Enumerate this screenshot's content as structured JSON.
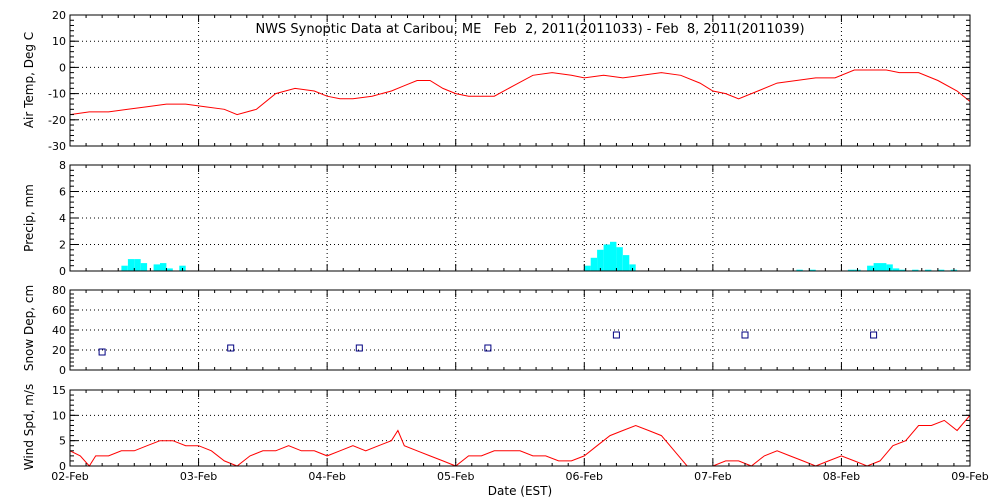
{
  "chart_data": {
    "type": "line",
    "title": "NWS Synoptic Data at Caribou, ME   Feb  2, 2011(2011033) - Feb  8, 2011(2011039)",
    "xlabel": "Date (EST)",
    "x_ticks": [
      "02-Feb",
      "03-Feb",
      "04-Feb",
      "05-Feb",
      "06-Feb",
      "07-Feb",
      "08-Feb",
      "09-Feb"
    ],
    "xlim": [
      0,
      7
    ],
    "grid": true,
    "colors": {
      "temp": "#ff0000",
      "precip": "#00ffff",
      "snow": "#000080",
      "wind": "#ff0000"
    },
    "panels": [
      {
        "id": "air-temp",
        "type": "line",
        "ylabel": "Air Temp, Deg C",
        "ylim": [
          -30,
          20
        ],
        "yticks": [
          "20",
          "10",
          "0",
          "-10",
          "-20",
          "-30"
        ],
        "series": [
          {
            "x": [
              0,
              0.15,
              0.3,
              0.45,
              0.6,
              0.75,
              0.9,
              1.05,
              1.2,
              1.3,
              1.45,
              1.6,
              1.75,
              1.9,
              2.0,
              2.1,
              2.2,
              2.35,
              2.5,
              2.6,
              2.7,
              2.8,
              2.9,
              3.0,
              3.1,
              3.2,
              3.3,
              3.45,
              3.6,
              3.75,
              3.9,
              4.0,
              4.15,
              4.3,
              4.45,
              4.6,
              4.75,
              4.9,
              5.0,
              5.1,
              5.2,
              5.35,
              5.5,
              5.65,
              5.8,
              5.95,
              6.1,
              6.25,
              6.35,
              6.45,
              6.6,
              6.75,
              6.9,
              7.0
            ],
            "y": [
              -18,
              -17,
              -17,
              -16,
              -15,
              -14,
              -14,
              -15,
              -16,
              -18,
              -16,
              -10,
              -8,
              -9,
              -11,
              -12,
              -12,
              -11,
              -9,
              -7,
              -5,
              -5,
              -8,
              -10,
              -11,
              -11,
              -11,
              -7,
              -3,
              -2,
              -3,
              -4,
              -3,
              -4,
              -3,
              -2,
              -3,
              -6,
              -9,
              -10,
              -12,
              -9,
              -6,
              -5,
              -4,
              -4,
              -1,
              -1,
              -1,
              -2,
              -2,
              -5,
              -9,
              -13
            ]
          }
        ]
      },
      {
        "id": "precip",
        "type": "bar",
        "ylabel": "Precip, mm",
        "ylim": [
          0,
          8
        ],
        "yticks": [
          "8",
          "6",
          "4",
          "2",
          "0"
        ],
        "series": [
          {
            "x": [
              0.4,
              0.45,
              0.5,
              0.55,
              0.65,
              0.7,
              0.75,
              0.85,
              4.0,
              4.05,
              4.1,
              4.15,
              4.2,
              4.25,
              4.3,
              4.35,
              5.65,
              5.75,
              6.05,
              6.1,
              6.2,
              6.25,
              6.3,
              6.35,
              6.4,
              6.45,
              6.55,
              6.65,
              6.75,
              6.85
            ],
            "y": [
              0.4,
              0.9,
              0.9,
              0.6,
              0.5,
              0.6,
              0.2,
              0.4,
              0.4,
              1.0,
              1.6,
              2.0,
              2.2,
              1.8,
              1.2,
              0.5,
              0.1,
              0.1,
              0.1,
              0.1,
              0.4,
              0.6,
              0.6,
              0.5,
              0.2,
              0.1,
              0.1,
              0.1,
              0.1,
              0.1
            ]
          }
        ]
      },
      {
        "id": "snow-depth",
        "type": "scatter",
        "ylabel": "Snow Dep, cm",
        "ylim": [
          0,
          80
        ],
        "yticks": [
          "80",
          "60",
          "40",
          "20",
          "0"
        ],
        "series": [
          {
            "x": [
              0.25,
              1.25,
              2.25,
              3.25,
              4.25,
              5.25,
              6.25
            ],
            "y": [
              18,
              22,
              22,
              22,
              35,
              35,
              35
            ]
          }
        ]
      },
      {
        "id": "wind-speed",
        "type": "line",
        "ylabel": "Wind Spd, m/s",
        "ylim": [
          0,
          15
        ],
        "yticks": [
          "15",
          "10",
          "5",
          "0"
        ],
        "series": [
          {
            "x": [
              0,
              0.08,
              0.15,
              0.2,
              0.3,
              0.4,
              0.5,
              0.6,
              0.7,
              0.8,
              0.9,
              1.0,
              1.1,
              1.2,
              1.3,
              1.4,
              1.5,
              1.6,
              1.7,
              1.8,
              1.9,
              2.0,
              2.1,
              2.2,
              2.3,
              2.4,
              2.5,
              2.55,
              2.6,
              2.7,
              2.8,
              2.9,
              3.0,
              3.1,
              3.2,
              3.3,
              3.4,
              3.5,
              3.6,
              3.7,
              3.8,
              3.9,
              4.0,
              4.1,
              4.2,
              4.3,
              4.4,
              4.5,
              4.6,
              4.7,
              4.8,
              4.9,
              5.0,
              5.1,
              5.2,
              5.3,
              5.4,
              5.5,
              5.6,
              5.7,
              5.8,
              5.9,
              6.0,
              6.1,
              6.2,
              6.3,
              6.4,
              6.5,
              6.6,
              6.7,
              6.8,
              6.9,
              7.0
            ],
            "y": [
              3,
              2,
              0,
              2,
              2,
              3,
              3,
              4,
              5,
              5,
              4,
              4,
              3,
              1,
              0,
              2,
              3,
              3,
              4,
              3,
              3,
              2,
              3,
              4,
              3,
              4,
              5,
              7,
              4,
              3,
              2,
              1,
              0,
              2,
              2,
              3,
              3,
              3,
              2,
              2,
              1,
              1,
              2,
              4,
              6,
              7,
              8,
              7,
              6,
              3,
              0,
              0,
              0,
              1,
              1,
              0,
              2,
              3,
              2,
              1,
              0,
              1,
              2,
              1,
              0,
              1,
              4,
              5,
              8,
              8,
              9,
              7,
              10
            ]
          }
        ]
      }
    ]
  }
}
